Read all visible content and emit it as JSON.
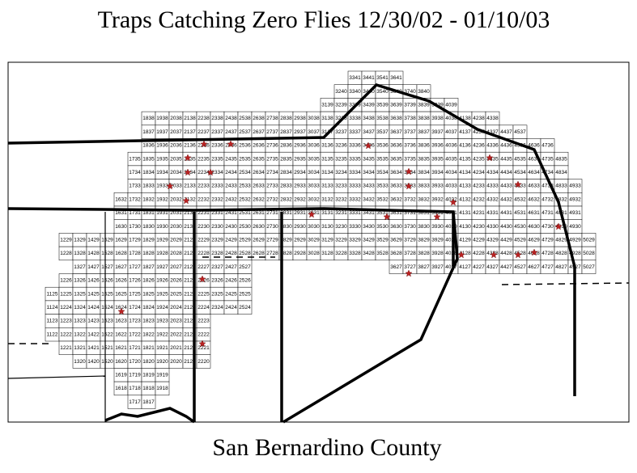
{
  "title": "Traps Catching Zero Flies    12/30/02 - 01/10/03",
  "county": "San Bernardino County",
  "grid": {
    "rows": [
      [
        "3341",
        "3441",
        "3541",
        "3641"
      ],
      [
        "3240",
        "3340",
        "3440",
        "3540",
        "3640",
        "3740",
        "3840"
      ],
      [
        "3139",
        "3239",
        "3339",
        "3439",
        "3539",
        "3639",
        "3739",
        "3839",
        "3939",
        "4039"
      ],
      [
        "1838",
        "1938",
        "2038",
        "2138",
        "2238",
        "2338",
        "2438",
        "2538",
        "2638",
        "2738",
        "2838",
        "2938",
        "3038",
        "3138",
        "3238",
        "3338",
        "3438",
        "3538",
        "3638",
        "3738",
        "3838",
        "3938",
        "4038",
        "4138",
        "4238",
        "4338"
      ],
      [
        "1837",
        "1937",
        "2037",
        "2137",
        "2237",
        "2337",
        "2437",
        "2537",
        "2637",
        "2737",
        "2837",
        "2937",
        "3037",
        "3137",
        "3237",
        "3337",
        "3437",
        "3537",
        "3637",
        "3737",
        "3837",
        "3937",
        "4037",
        "4137",
        "4237",
        "4337",
        "4437",
        "4537"
      ],
      [
        "1836",
        "1936",
        "2036",
        "2136",
        "2236",
        "2336",
        "2436",
        "2536",
        "2636",
        "2736",
        "2836",
        "2936",
        "3036",
        "3136",
        "3236",
        "3336",
        "3436",
        "3536",
        "3636",
        "3736",
        "3836",
        "3936",
        "4036",
        "4136",
        "4236",
        "4336",
        "4436",
        "4536",
        "4636",
        "4736"
      ],
      [
        "1735",
        "1835",
        "1935",
        "2035",
        "2135",
        "2235",
        "2335",
        "2435",
        "2535",
        "2635",
        "2735",
        "2835",
        "2935",
        "3035",
        "3135",
        "3235",
        "3335",
        "3435",
        "3535",
        "3635",
        "3735",
        "3835",
        "3935",
        "4035",
        "4135",
        "4235",
        "4335",
        "4435",
        "4535",
        "4635",
        "4735",
        "4835"
      ],
      [
        "1734",
        "1834",
        "1934",
        "2034",
        "2134",
        "2234",
        "2334",
        "2434",
        "2534",
        "2634",
        "2734",
        "2834",
        "2934",
        "3034",
        "3134",
        "3234",
        "3334",
        "3434",
        "3534",
        "3634",
        "3734",
        "3834",
        "3934",
        "4034",
        "4134",
        "4234",
        "4334",
        "4434",
        "4534",
        "4634",
        "4734",
        "4834"
      ],
      [
        "1733",
        "1833",
        "1933",
        "2033",
        "2133",
        "2233",
        "2333",
        "2433",
        "2533",
        "2633",
        "2733",
        "2833",
        "2933",
        "3033",
        "3133",
        "3233",
        "3333",
        "3433",
        "3533",
        "3633",
        "3733",
        "3833",
        "3933",
        "4033",
        "4133",
        "4233",
        "4333",
        "4433",
        "4533",
        "4633",
        "4733",
        "4833",
        "4933"
      ],
      [
        "1632",
        "1732",
        "1832",
        "1932",
        "2032",
        "2132",
        "2232",
        "2332",
        "2432",
        "2532",
        "2632",
        "2732",
        "2832",
        "2932",
        "3032",
        "3132",
        "3232",
        "3332",
        "3432",
        "3532",
        "3632",
        "3732",
        "3832",
        "3932",
        "4032",
        "4132",
        "4232",
        "4332",
        "4432",
        "4532",
        "4632",
        "4732",
        "4832",
        "4932"
      ],
      [
        "1631",
        "1731",
        "1831",
        "1931",
        "2031",
        "2131",
        "2231",
        "2331",
        "2431",
        "2531",
        "2631",
        "2731",
        "2831",
        "2931",
        "3031",
        "3131",
        "3231",
        "3331",
        "3431",
        "3531",
        "3631",
        "3731",
        "3831",
        "3931",
        "4031",
        "4131",
        "4231",
        "4331",
        "4431",
        "4531",
        "4631",
        "4731",
        "4831",
        "4931"
      ],
      [
        "1630",
        "1730",
        "1830",
        "1930",
        "2030",
        "2130",
        "2230",
        "2330",
        "2430",
        "2530",
        "2630",
        "2730",
        "2830",
        "2930",
        "3030",
        "3130",
        "3230",
        "3330",
        "3430",
        "3530",
        "3630",
        "3730",
        "3830",
        "3930",
        "4030",
        "4130",
        "4230",
        "4330",
        "4430",
        "4530",
        "4630",
        "4730",
        "4830",
        "4930"
      ],
      [
        "1229",
        "1329",
        "1429",
        "1529",
        "1629",
        "1729",
        "1829",
        "1929",
        "2029",
        "2129",
        "2229",
        "2329",
        "2429",
        "2529",
        "2629",
        "2729",
        "2829",
        "2929",
        "3029",
        "3129",
        "3229",
        "3329",
        "3429",
        "3529",
        "3629",
        "3729",
        "3829",
        "3929",
        "4029",
        "4129",
        "4229",
        "4329",
        "4429",
        "4529",
        "4629",
        "4729",
        "4829",
        "4929",
        "5029"
      ],
      [
        "1228",
        "1328",
        "1428",
        "1528",
        "1628",
        "1728",
        "1828",
        "1928",
        "2028",
        "2128",
        "2228",
        "2328",
        "2428",
        "2528",
        "2628",
        "2728",
        "2828",
        "2928",
        "3028",
        "3128",
        "3228",
        "3328",
        "3428",
        "3528",
        "3628",
        "3728",
        "3828",
        "3928",
        "4028",
        "4128",
        "4228",
        "4328",
        "4428",
        "4528",
        "4628",
        "4728",
        "4828",
        "4928",
        "5028"
      ],
      [
        "1327",
        "1427",
        "1527",
        "1627",
        "1727",
        "1827",
        "1927",
        "2027",
        "2127",
        "2227",
        "2327",
        "2427",
        "2527",
        "3627",
        "3727",
        "3827",
        "3927",
        "4027",
        "4127",
        "4227",
        "4327",
        "4427",
        "4527",
        "4627",
        "4727",
        "4827",
        "4927",
        "5027"
      ],
      [
        "1226",
        "1326",
        "1426",
        "1526",
        "1626",
        "1726",
        "1826",
        "1926",
        "2026",
        "2126",
        "2226",
        "2326",
        "2426",
        "2526"
      ],
      [
        "1125",
        "1225",
        "1325",
        "1425",
        "1525",
        "1625",
        "1725",
        "1825",
        "1925",
        "2025",
        "2125",
        "2225",
        "2325",
        "2425",
        "2525"
      ],
      [
        "1124",
        "1224",
        "1324",
        "1424",
        "1524",
        "1624",
        "1724",
        "1824",
        "1924",
        "2024",
        "2124",
        "2224",
        "2324",
        "2424",
        "2524"
      ],
      [
        "1123",
        "1223",
        "1323",
        "1423",
        "1523",
        "1623",
        "1723",
        "1823",
        "1923",
        "2023",
        "2123",
        "2223"
      ],
      [
        "1122",
        "1222",
        "1322",
        "1422",
        "1522",
        "1622",
        "1722",
        "1822",
        "1922",
        "2022",
        "2122",
        "2222"
      ],
      [
        "1221",
        "1321",
        "1421",
        "1521",
        "1621",
        "1721",
        "1821",
        "1921",
        "2021",
        "2121",
        "2221"
      ],
      [
        "1320",
        "1420",
        "1520",
        "1620",
        "1720",
        "1820",
        "1920",
        "2020",
        "2120",
        "2220"
      ],
      [
        "1619",
        "1719",
        "1819",
        "1919"
      ],
      [
        "1618",
        "1718",
        "1818",
        "1918"
      ],
      [
        "1717",
        "1817"
      ]
    ]
  }
}
